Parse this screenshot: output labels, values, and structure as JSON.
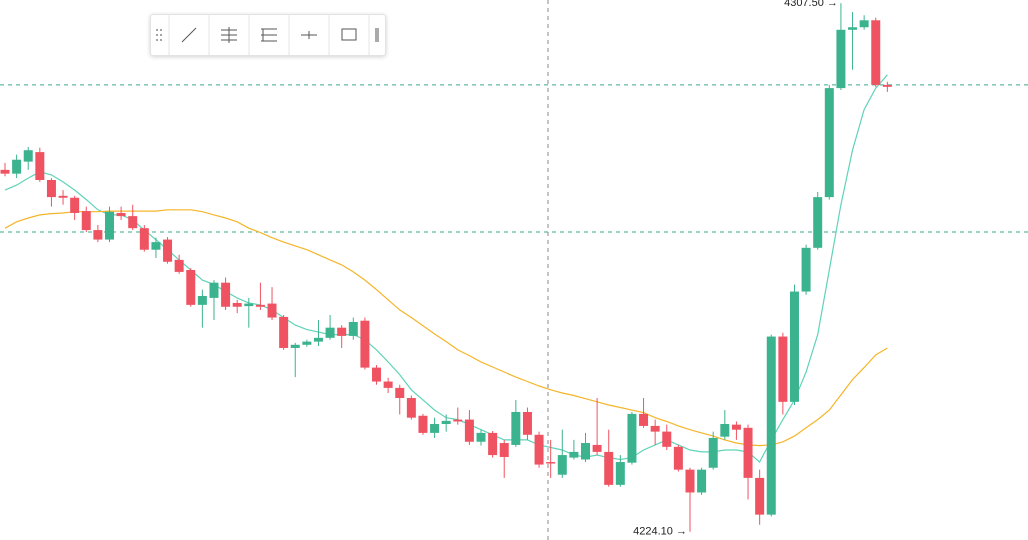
{
  "chart_data": {
    "type": "candlestick",
    "ylim": [
      4222.8,
      4308.0
    ],
    "up_color": "#3cb38f",
    "down_color": "#ef5361",
    "ohlc": [
      [
        4281.2,
        4282.3,
        4280.2,
        4280.6
      ],
      [
        4280.6,
        4283.6,
        4279.9,
        4282.8
      ],
      [
        4282.5,
        4284.8,
        4281.2,
        4284.3
      ],
      [
        4284.0,
        4284.7,
        4279.3,
        4279.6
      ],
      [
        4279.6,
        4279.9,
        4275.4,
        4276.9
      ],
      [
        4277.1,
        4278.0,
        4275.7,
        4276.8
      ],
      [
        4276.8,
        4277.1,
        4273.3,
        4274.4
      ],
      [
        4274.7,
        4275.4,
        4271.4,
        4271.7
      ],
      [
        4271.7,
        4272.5,
        4269.8,
        4270.2
      ],
      [
        4270.2,
        4275.4,
        4269.8,
        4274.6
      ],
      [
        4274.4,
        4275.4,
        4273.3,
        4273.9
      ],
      [
        4273.9,
        4275.7,
        4271.7,
        4272.0
      ],
      [
        4272.0,
        4272.5,
        4268.3,
        4268.6
      ],
      [
        4268.6,
        4270.5,
        4267.3,
        4269.8
      ],
      [
        4270.2,
        4270.6,
        4266.4,
        4266.7
      ],
      [
        4267.0,
        4267.8,
        4264.8,
        4265.1
      ],
      [
        4265.4,
        4265.7,
        4259.6,
        4259.9
      ],
      [
        4259.9,
        4262.3,
        4256.3,
        4261.3
      ],
      [
        4261.0,
        4263.8,
        4257.5,
        4263.4
      ],
      [
        4263.4,
        4264.2,
        4259.1,
        4259.6
      ],
      [
        4260.2,
        4260.7,
        4258.6,
        4259.6
      ],
      [
        4259.7,
        4261.0,
        4256.3,
        4260.1
      ],
      [
        4259.9,
        4263.4,
        4259.1,
        4259.6
      ],
      [
        4260.1,
        4262.7,
        4257.5,
        4257.9
      ],
      [
        4258.0,
        4258.3,
        4252.8,
        4253.1
      ],
      [
        4253.1,
        4253.9,
        4248.5,
        4253.6
      ],
      [
        4253.6,
        4254.4,
        4253.3,
        4254.1
      ],
      [
        4254.1,
        4257.5,
        4253.4,
        4254.7
      ],
      [
        4254.7,
        4258.3,
        4254.4,
        4256.3
      ],
      [
        4256.3,
        4256.7,
        4253.1,
        4255.0
      ],
      [
        4255.0,
        4257.9,
        4254.4,
        4257.2
      ],
      [
        4257.4,
        4257.9,
        4249.7,
        4250.0
      ],
      [
        4250.0,
        4250.4,
        4247.3,
        4247.8
      ],
      [
        4247.8,
        4248.4,
        4246.0,
        4246.8
      ],
      [
        4246.8,
        4247.3,
        4242.6,
        4245.2
      ],
      [
        4245.2,
        4245.6,
        4241.8,
        4242.1
      ],
      [
        4242.4,
        4242.7,
        4239.4,
        4239.7
      ],
      [
        4239.7,
        4242.1,
        4238.9,
        4241.1
      ],
      [
        4241.1,
        4242.6,
        4239.9,
        4241.6
      ],
      [
        4241.8,
        4243.7,
        4241.0,
        4241.5
      ],
      [
        4241.8,
        4243.3,
        4237.8,
        4238.3
      ],
      [
        4238.3,
        4240.2,
        4237.7,
        4239.7
      ],
      [
        4239.7,
        4240.0,
        4235.8,
        4236.2
      ],
      [
        4238.1,
        4238.6,
        4232.6,
        4235.9
      ],
      [
        4237.8,
        4244.9,
        4237.5,
        4243.0
      ],
      [
        4243.0,
        4243.7,
        4238.6,
        4239.4
      ],
      [
        4239.4,
        4239.9,
        4234.2,
        4234.7
      ],
      [
        4235.1,
        4238.6,
        4232.6,
        4235.0
      ],
      [
        4233.1,
        4240.2,
        4232.6,
        4236.2
      ],
      [
        4235.8,
        4238.6,
        4235.5,
        4236.7
      ],
      [
        4235.5,
        4239.7,
        4235.1,
        4238.1
      ],
      [
        4237.8,
        4245.2,
        4236.2,
        4236.7
      ],
      [
        4236.7,
        4240.2,
        4231.2,
        4231.5
      ],
      [
        4231.5,
        4236.2,
        4231.2,
        4235.1
      ],
      [
        4235.0,
        4243.0,
        4234.7,
        4242.7
      ],
      [
        4242.7,
        4245.2,
        4240.5,
        4240.8
      ],
      [
        4240.8,
        4241.8,
        4237.8,
        4239.9
      ],
      [
        4239.9,
        4241.0,
        4237.0,
        4237.5
      ],
      [
        4237.5,
        4237.8,
        4233.6,
        4233.9
      ],
      [
        4233.9,
        4234.2,
        4224.1,
        4230.3
      ],
      [
        4230.3,
        4234.2,
        4229.9,
        4233.9
      ],
      [
        4234.2,
        4239.9,
        4233.9,
        4238.9
      ],
      [
        4239.1,
        4243.3,
        4238.6,
        4241.1
      ],
      [
        4241.0,
        4241.5,
        4238.6,
        4240.2
      ],
      [
        4240.5,
        4241.0,
        4229.2,
        4232.6
      ],
      [
        4232.6,
        4233.9,
        4225.2,
        4226.8
      ],
      [
        4226.8,
        4255.2,
        4226.5,
        4254.9
      ],
      [
        4254.9,
        4255.5,
        4242.6,
        4244.6
      ],
      [
        4244.6,
        4263.1,
        4244.1,
        4262.0
      ],
      [
        4262.0,
        4269.4,
        4261.5,
        4268.9
      ],
      [
        4268.9,
        4277.7,
        4268.6,
        4276.9
      ],
      [
        4276.9,
        4294.6,
        4276.5,
        4294.1
      ],
      [
        4294.1,
        4307.5,
        4293.8,
        4303.3
      ],
      [
        4303.3,
        4306.1,
        4297.0,
        4303.7
      ],
      [
        4303.7,
        4305.6,
        4303.3,
        4304.8
      ],
      [
        4304.8,
        4305.2,
        4294.3,
        4294.6
      ],
      [
        4294.6,
        4295.1,
        4293.5,
        4294.3
      ]
    ],
    "lines": [
      {
        "color": "#5fd3b8",
        "values": [
          4278.0,
          4278.8,
          4279.9,
          4280.9,
          4280.4,
          4279.3,
          4278.0,
          4276.5,
          4274.9,
          4274.1,
          4274.1,
          4273.3,
          4271.7,
          4270.2,
          4268.6,
          4267.0,
          4265.4,
          4263.8,
          4263.1,
          4262.0,
          4261.0,
          4260.2,
          4259.9,
          4259.1,
          4257.9,
          4256.7,
          4256.0,
          4255.6,
          4255.2,
          4255.2,
          4255.2,
          4254.4,
          4252.8,
          4250.9,
          4248.9,
          4246.5,
          4244.9,
          4243.3,
          4242.1,
          4241.8,
          4241.0,
          4240.2,
          4239.4,
          4238.6,
          4238.6,
          4238.6,
          4237.8,
          4237.4,
          4237.0,
          4236.2,
          4235.9,
          4236.2,
          4235.8,
          4235.5,
          4235.8,
          4237.0,
          4237.8,
          4238.6,
          4237.8,
          4237.0,
          4236.7,
          4236.7,
          4237.0,
          4237.0,
          4236.7,
          4235.1,
          4238.6,
          4241.8,
          4244.9,
          4249.3,
          4255.2,
          4265.4,
          4275.7,
          4284.3,
          4290.7,
          4294.1,
          4296.2
        ]
      },
      {
        "color": "#f5b52a",
        "values": [
          4272.0,
          4273.0,
          4273.6,
          4274.1,
          4274.3,
          4274.4,
          4274.6,
          4274.6,
          4274.6,
          4274.7,
          4274.7,
          4274.7,
          4274.7,
          4274.7,
          4274.9,
          4274.9,
          4274.9,
          4274.6,
          4274.1,
          4273.6,
          4273.0,
          4272.0,
          4271.3,
          4270.5,
          4269.8,
          4269.2,
          4268.6,
          4267.8,
          4267.0,
          4266.2,
          4265.1,
          4263.8,
          4262.3,
          4260.7,
          4259.1,
          4257.9,
          4256.6,
          4255.3,
          4254.1,
          4252.8,
          4251.9,
          4250.9,
          4250.1,
          4249.3,
          4248.5,
          4247.8,
          4247.1,
          4246.5,
          4246.0,
          4245.6,
          4245.1,
          4244.6,
          4244.1,
          4243.7,
          4243.3,
          4242.9,
          4242.1,
          4241.5,
          4240.8,
          4240.2,
          4239.7,
          4239.2,
          4238.6,
          4238.1,
          4237.8,
          4237.7,
          4237.8,
          4238.3,
          4239.2,
          4240.5,
          4241.8,
          4243.3,
          4245.7,
          4248.1,
          4250.0,
          4252.0,
          4253.1
        ]
      }
    ],
    "price_lines": [
      4294.6,
      4271.4
    ],
    "annotations": [
      {
        "label": "4307.50 →",
        "value": 4307.5
      },
      {
        "label": "4224.10 →",
        "value": 4224.1
      }
    ]
  }
}
